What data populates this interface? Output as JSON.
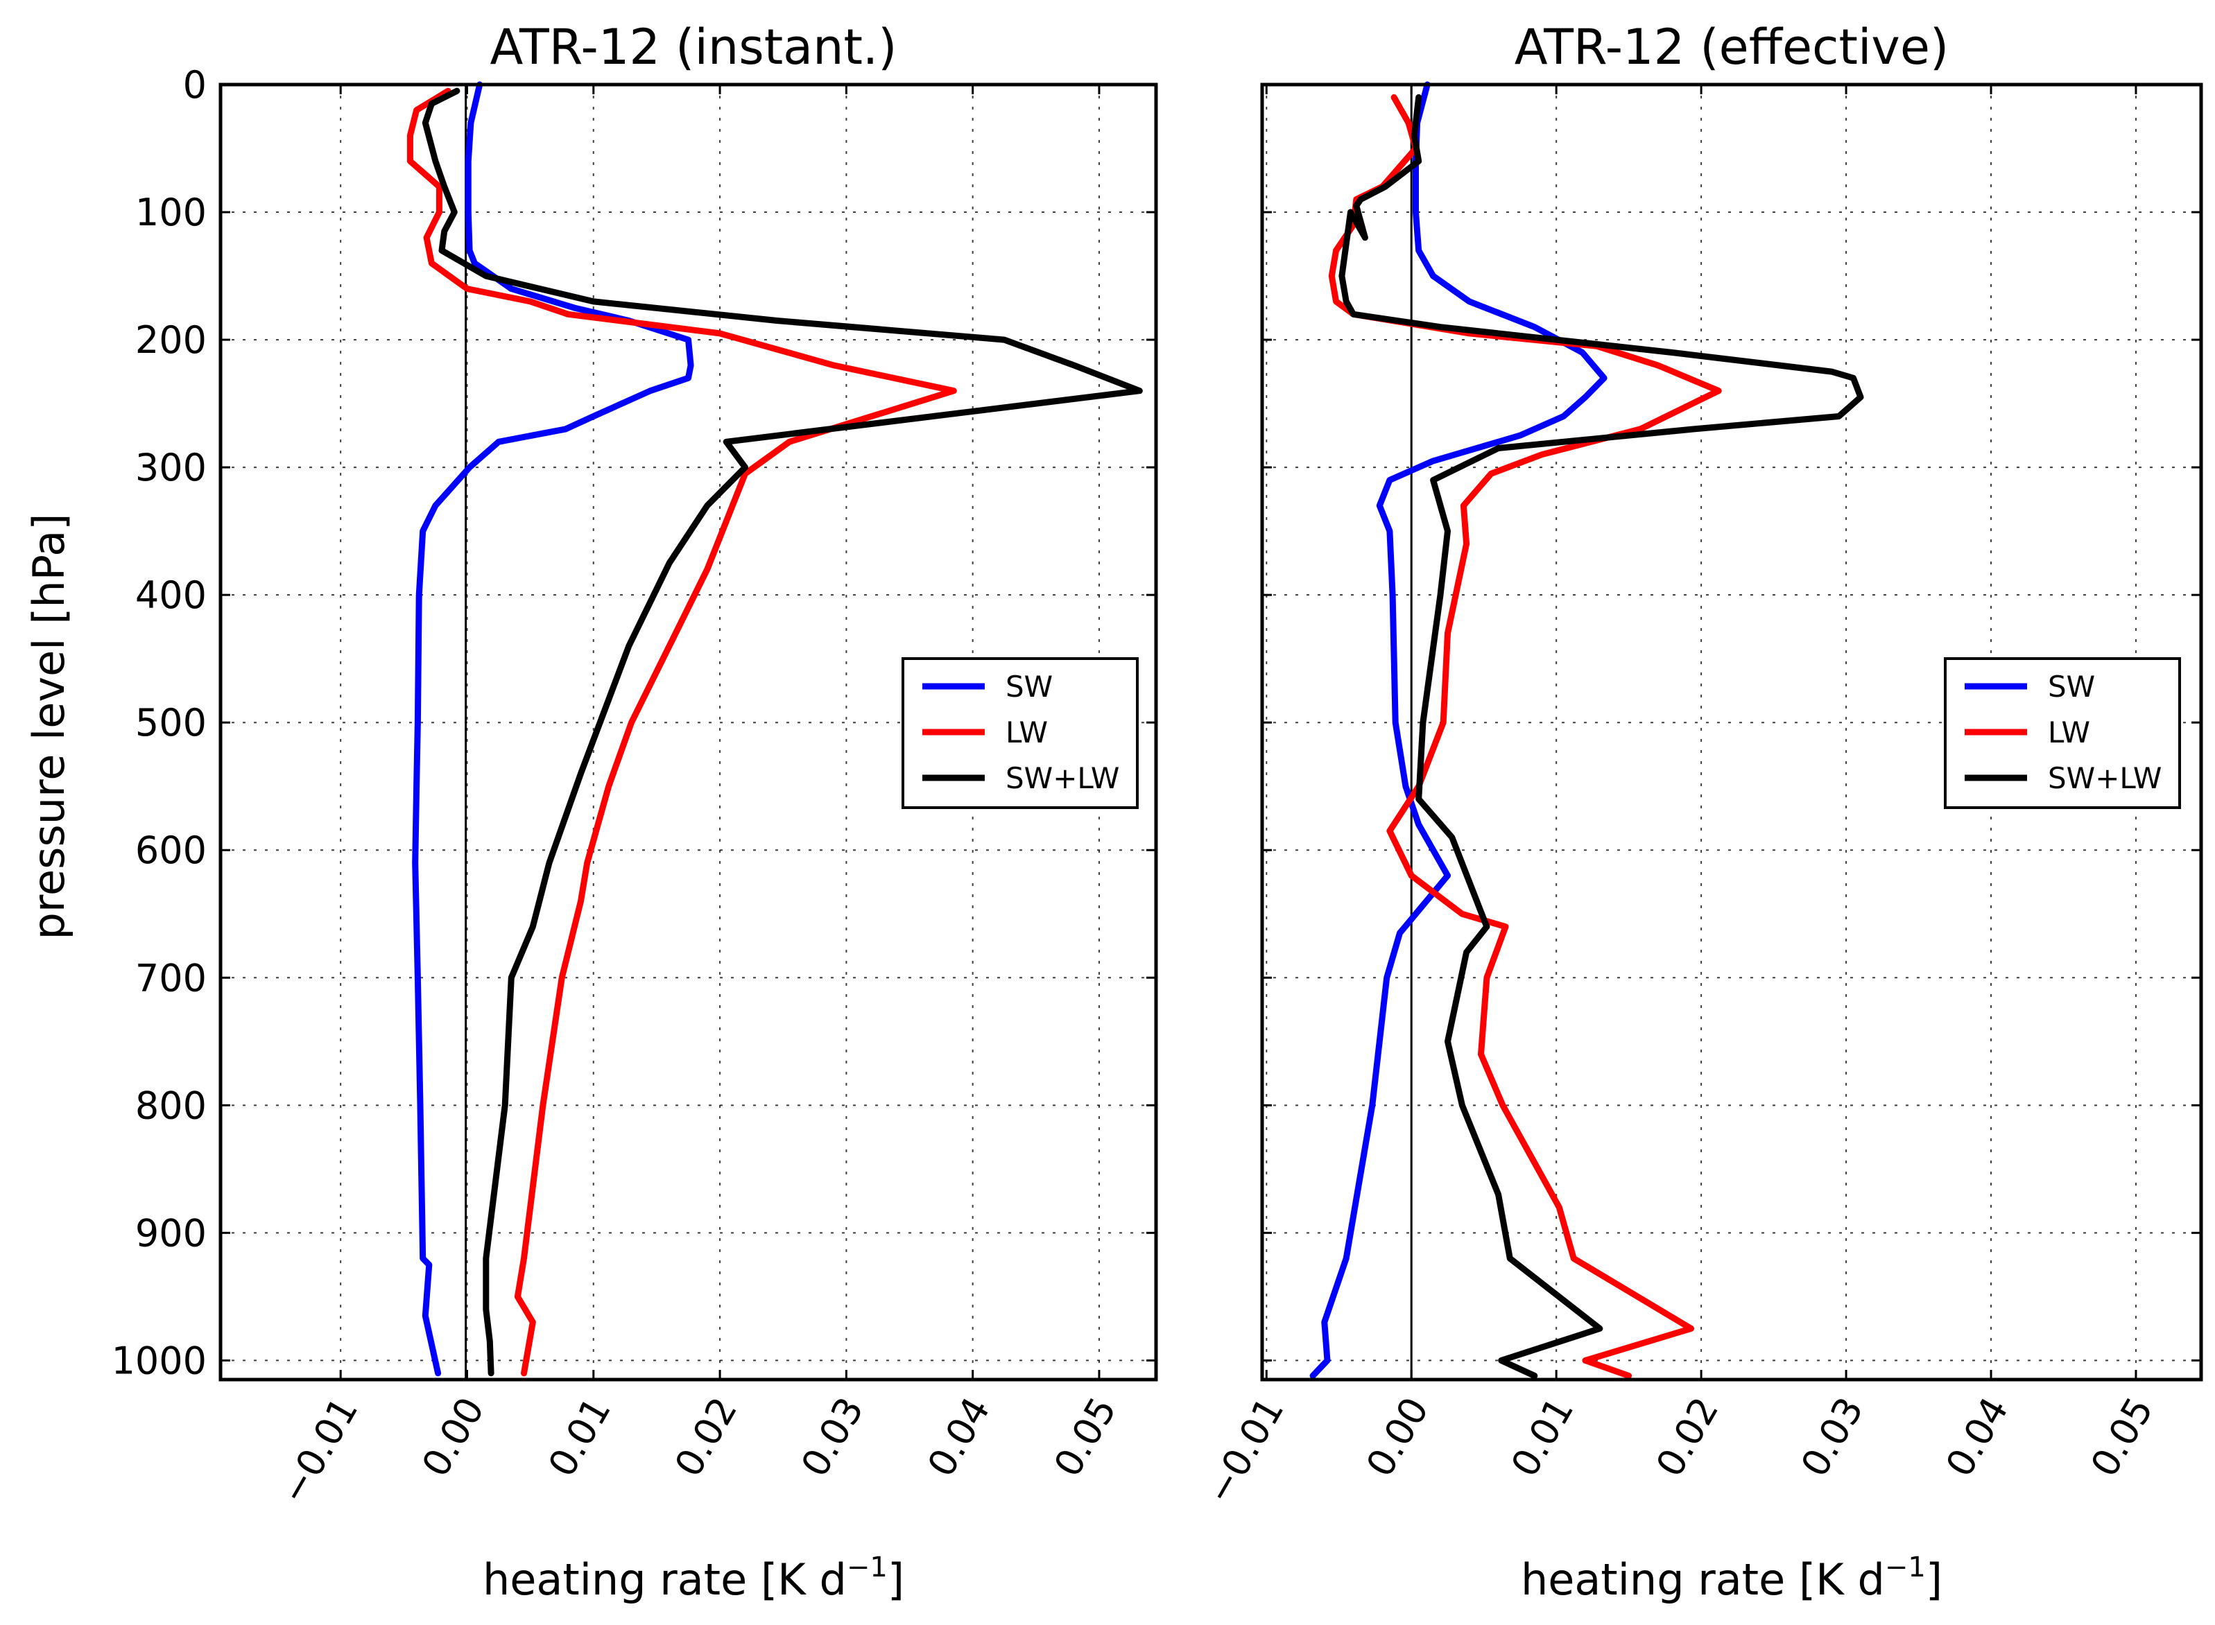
{
  "chart_data": [
    {
      "type": "line",
      "title": "ATR-12 (instant.)",
      "xlabel": "heating rate [K d",
      "xlabel_sup": "−1",
      "xlabel_end": "]",
      "ylabel": "pressure level [hPa]",
      "xlim": [
        -0.0195,
        0.0545
      ],
      "ylim": [
        1015,
        0
      ],
      "x_ticks": [
        -0.01,
        0.0,
        0.01,
        0.02,
        0.03,
        0.04,
        0.05
      ],
      "x_tick_labels": [
        "−0.01",
        "0.00",
        "0.01",
        "0.02",
        "0.03",
        "0.04",
        "0.05"
      ],
      "y_ticks": [
        0,
        100,
        200,
        300,
        400,
        500,
        600,
        700,
        800,
        900,
        1000
      ],
      "y_tick_labels": [
        "0",
        "100",
        "200",
        "300",
        "400",
        "500",
        "600",
        "700",
        "800",
        "900",
        "1000"
      ],
      "zero_line_x": -0.0001,
      "legend": {
        "position": "center-right",
        "entries": [
          "SW",
          "LW",
          "SW+LW"
        ]
      },
      "series": [
        {
          "name": "SW",
          "color": "#0000ff",
          "x": [
            0.001,
            0.0003,
            0.0001,
            0.0001,
            0.0002,
            0.0006,
            0.0035,
            0.0085,
            0.0128,
            0.0175,
            0.0177,
            0.0175,
            0.0145,
            0.01,
            0.0078,
            0.0025,
            0.0002,
            -0.0025,
            -0.0035,
            -0.0038,
            -0.0039,
            -0.004,
            -0.0041,
            -0.0039,
            -0.0037,
            -0.0035,
            -0.003,
            -0.0033,
            -0.0023
          ],
          "y": [
            0,
            30,
            60,
            100,
            130,
            140,
            160,
            175,
            185,
            200,
            220,
            230,
            240,
            260,
            270,
            280,
            300,
            330,
            350,
            400,
            500,
            550,
            610,
            700,
            800,
            920,
            925,
            965,
            1010
          ]
        },
        {
          "name": "LW",
          "color": "#ff0000",
          "x": [
            -0.0015,
            -0.004,
            -0.0045,
            -0.0045,
            -0.0022,
            -0.0022,
            -0.0032,
            -0.0028,
            0.0,
            0.005,
            0.008,
            0.02,
            0.029,
            0.0385,
            0.0255,
            0.022,
            0.019,
            0.0165,
            0.013,
            0.0112,
            0.0095,
            0.009,
            0.0075,
            0.006,
            0.0045,
            0.004,
            0.0052,
            0.0045
          ],
          "y": [
            5,
            20,
            40,
            60,
            80,
            100,
            120,
            140,
            160,
            170,
            180,
            195,
            220,
            240,
            280,
            305,
            380,
            430,
            500,
            550,
            610,
            640,
            700,
            800,
            920,
            950,
            970,
            1010
          ]
        },
        {
          "name": "SW+LW",
          "color": "#000000",
          "x": [
            -0.0008,
            -0.0028,
            -0.0033,
            -0.0025,
            -0.0018,
            -0.001,
            -0.0018,
            -0.002,
            0.0015,
            0.01,
            0.0245,
            0.0425,
            0.048,
            0.0532,
            0.0205,
            0.022,
            0.019,
            0.016,
            0.0128,
            0.009,
            0.0065,
            0.0052,
            0.0035,
            0.003,
            0.0015,
            0.0015,
            0.0018,
            0.0019
          ],
          "y": [
            5,
            15,
            30,
            60,
            80,
            100,
            115,
            130,
            150,
            170,
            185,
            200,
            220,
            240,
            280,
            300,
            330,
            375,
            440,
            540,
            610,
            660,
            700,
            800,
            920,
            960,
            985,
            1010
          ]
        }
      ]
    },
    {
      "type": "line",
      "title": "ATR-12 (effective)",
      "xlabel": "heating rate [K d",
      "xlabel_sup": "−1",
      "xlabel_end": "]",
      "ylabel": "",
      "xlim": [
        -0.0103,
        0.0545
      ],
      "ylim": [
        1015,
        0
      ],
      "x_ticks": [
        -0.01,
        0.0,
        0.01,
        0.02,
        0.03,
        0.04,
        0.05
      ],
      "x_tick_labels": [
        "−0.01",
        "0.00",
        "0.01",
        "0.02",
        "0.03",
        "0.04",
        "0.05"
      ],
      "y_ticks": [
        0,
        100,
        200,
        300,
        400,
        500,
        600,
        700,
        800,
        900,
        1000
      ],
      "zero_line_x": 0.0,
      "legend": {
        "position": "center-right",
        "entries": [
          "SW",
          "LW",
          "SW+LW"
        ]
      },
      "series": [
        {
          "name": "SW",
          "color": "#0000ff",
          "x": [
            0.0011,
            0.0004,
            0.0003,
            0.0003,
            0.0005,
            0.0015,
            0.004,
            0.0085,
            0.0118,
            0.0133,
            0.012,
            0.0105,
            0.0075,
            0.0015,
            -0.0015,
            -0.0022,
            -0.0015,
            -0.0013,
            -0.0011,
            -0.0004,
            0.0005,
            0.0015,
            0.0025,
            -0.0008,
            -0.0017,
            -0.0027,
            -0.0045,
            -0.006,
            -0.0058,
            -0.0068
          ],
          "y": [
            0,
            30,
            60,
            100,
            130,
            150,
            170,
            190,
            210,
            230,
            245,
            260,
            275,
            295,
            310,
            330,
            350,
            400,
            500,
            550,
            580,
            600,
            620,
            665,
            700,
            800,
            920,
            970,
            1000,
            1012
          ]
        },
        {
          "name": "LW",
          "color": "#ff0000",
          "x": [
            -0.0012,
            -0.0002,
            0.0003,
            -0.002,
            -0.0038,
            -0.004,
            -0.0052,
            -0.0055,
            -0.0052,
            -0.004,
            0.004,
            0.0128,
            0.017,
            0.0212,
            0.0158,
            0.009,
            0.0055,
            0.0036,
            0.0038,
            0.0025,
            0.0022,
            0.0005,
            -0.0015,
            0.0,
            0.0035,
            0.0065,
            0.0052,
            0.0048,
            0.0063,
            0.0102,
            0.0112,
            0.0193,
            0.012,
            0.015
          ],
          "y": [
            10,
            30,
            50,
            80,
            90,
            110,
            130,
            150,
            170,
            180,
            195,
            205,
            220,
            240,
            270,
            290,
            305,
            330,
            360,
            430,
            500,
            550,
            585,
            620,
            650,
            660,
            700,
            760,
            800,
            880,
            920,
            975,
            1000,
            1012
          ]
        },
        {
          "name": "SW+LW",
          "color": "#000000",
          "x": [
            0.0005,
            0.0002,
            0.0005,
            -0.0018,
            -0.0035,
            -0.0038,
            -0.0032,
            -0.0042,
            -0.0048,
            -0.0045,
            -0.004,
            0.002,
            0.018,
            0.029,
            0.0305,
            0.031,
            0.0295,
            0.0195,
            0.006,
            0.0015,
            0.0025,
            0.002,
            0.0008,
            0.0005,
            0.0028,
            0.0052,
            0.0038,
            0.0025,
            0.0035,
            0.006,
            0.0068,
            0.013,
            0.0062,
            0.0085
          ],
          "y": [
            10,
            40,
            60,
            80,
            90,
            95,
            120,
            100,
            150,
            170,
            180,
            190,
            210,
            225,
            230,
            245,
            260,
            270,
            285,
            310,
            350,
            400,
            500,
            560,
            590,
            660,
            680,
            750,
            800,
            870,
            920,
            975,
            1000,
            1012
          ]
        }
      ]
    }
  ]
}
